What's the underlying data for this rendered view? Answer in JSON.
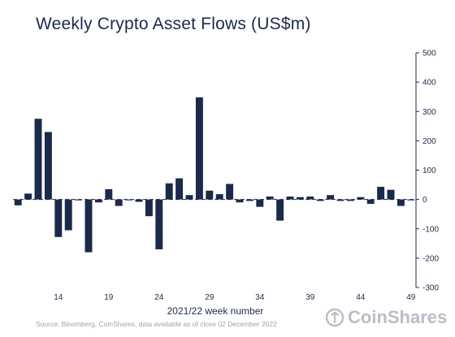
{
  "chart_data": {
    "type": "bar",
    "title": "Weekly Crypto Asset Flows (US$m)",
    "xlabel": "2021/22 week number",
    "ylabel": "",
    "ylim": [
      -300,
      500
    ],
    "yticks": [
      500,
      400,
      300,
      200,
      100,
      0,
      -100,
      -200,
      -300
    ],
    "xticks": [
      14,
      19,
      24,
      29,
      34,
      39,
      44,
      49
    ],
    "weeks": [
      10,
      11,
      12,
      13,
      14,
      15,
      16,
      17,
      18,
      19,
      20,
      21,
      22,
      23,
      24,
      25,
      26,
      27,
      28,
      29,
      30,
      31,
      32,
      33,
      34,
      35,
      36,
      37,
      38,
      39,
      40,
      41,
      42,
      43,
      44,
      45,
      46,
      47,
      48,
      49
    ],
    "values": [
      -20,
      20,
      275,
      230,
      -128,
      -105,
      -3,
      -180,
      -10,
      35,
      -22,
      -3,
      -8,
      -57,
      -170,
      55,
      72,
      15,
      348,
      30,
      18,
      53,
      -10,
      -5,
      -25,
      10,
      -72,
      10,
      8,
      10,
      -5,
      15,
      -5,
      -5,
      8,
      -15,
      43,
      33,
      -22,
      -3
    ],
    "bar_color": "#1b2a4a",
    "grid": false,
    "legend": "none",
    "source": "Source: Bloomberg, CoinShares, data available as of close 02 December 2022",
    "brand": "CoinShares"
  }
}
